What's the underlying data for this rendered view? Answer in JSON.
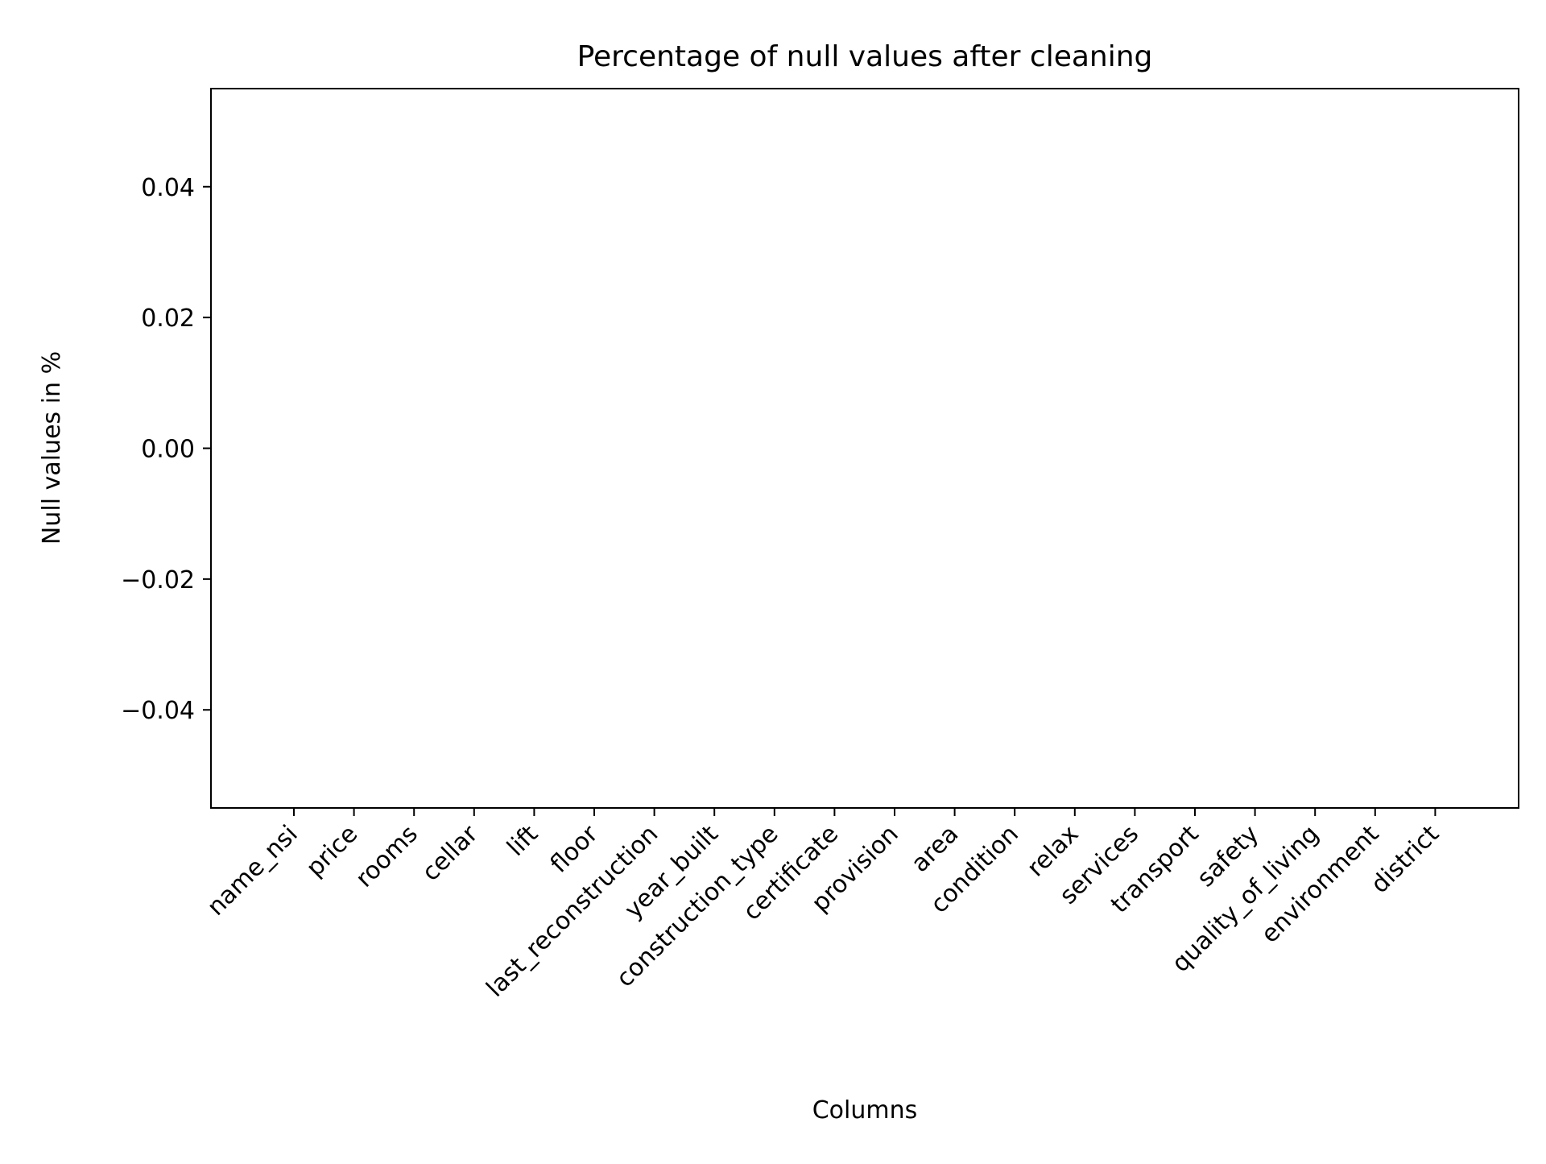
{
  "chart_data": {
    "type": "bar",
    "title": "Percentage of null values after cleaning",
    "xlabel": "Columns",
    "ylabel": "Null values in %",
    "categories": [
      "name_nsi",
      "price",
      "rooms",
      "cellar",
      "lift",
      "floor",
      "last_reconstruction",
      "year_built",
      "construction_type",
      "certificate",
      "provision",
      "area",
      "condition",
      "relax",
      "services",
      "transport",
      "safety",
      "quality_of_living",
      "environment",
      "district"
    ],
    "values": [
      0,
      0,
      0,
      0,
      0,
      0,
      0,
      0,
      0,
      0,
      0,
      0,
      0,
      0,
      0,
      0,
      0,
      0,
      0,
      0
    ],
    "ylim": [
      -0.055,
      0.055
    ],
    "yticks": [
      0.04,
      0.02,
      0.0,
      -0.02,
      -0.04
    ],
    "ytick_labels": [
      "0.04",
      "0.02",
      "0.00",
      "−0.02",
      "−0.04"
    ],
    "grid": false,
    "legend": "none",
    "bar_color": "#1f77b4"
  }
}
